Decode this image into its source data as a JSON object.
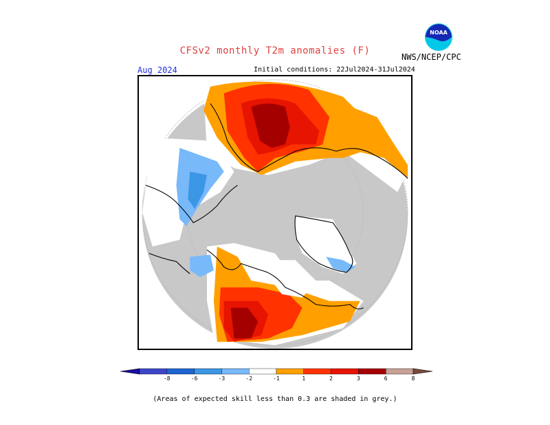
{
  "header": {
    "title": "CFSv2 monthly T2m anomalies (F)",
    "agency": "NWS/NCEP/CPC",
    "logo_text": "NOAA",
    "valid_month": "Aug 2024",
    "initial_conditions": "Initial conditions: 22Jul2024-31Jul2024"
  },
  "map": {
    "projection": "north-polar-stereographic",
    "grey_color": "#c8c8c8",
    "coast_color": "#000000"
  },
  "legend": {
    "ticks": [
      "-8",
      "-6",
      "-3",
      "-2",
      "-1",
      "1",
      "2",
      "3",
      "6",
      "8"
    ],
    "colors": [
      "#1a0fa0",
      "#3c46c8",
      "#1e64d2",
      "#3c96e6",
      "#78b9fa",
      "#ffffff",
      "#ffa000",
      "#ff3200",
      "#e61400",
      "#a50000",
      "#c8a096",
      "#7a4a3c"
    ]
  },
  "footnote": "(Areas of expected skill less than 0.3 are shaded in grey.)"
}
